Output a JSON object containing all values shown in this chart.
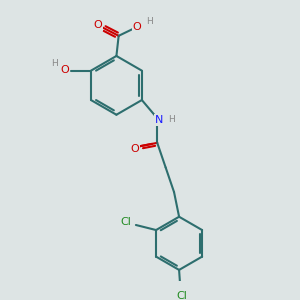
{
  "bg": "#dde4e4",
  "bond_color": "#2d6e6e",
  "bw": 1.5,
  "atom_colors": {
    "O": "#cc0000",
    "N": "#1a1aff",
    "Cl": "#228b22",
    "H": "#888888"
  },
  "fs": 8.0,
  "fig_size": [
    3.0,
    3.0
  ],
  "dpi": 100
}
